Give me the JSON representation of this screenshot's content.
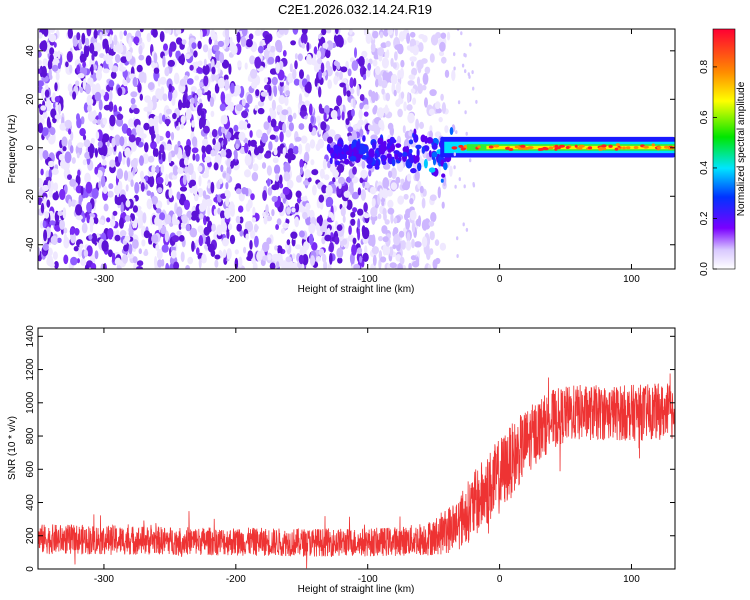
{
  "title": "C2E1.2026.032.14.24.R19",
  "colors": {
    "snr_trace": "#ee3333",
    "spectro_low": "#e4dcff",
    "spectro_mid": "#6a1fe0",
    "axis": "#000000"
  },
  "chart_data": [
    {
      "type": "heatmap",
      "name": "spectrogram",
      "xlabel": "Height of straight line (km)",
      "ylabel": "Frequency (Hz)",
      "xlim": [
        -350,
        133
      ],
      "ylim": [
        -50,
        49
      ],
      "xticks": [
        -300,
        -200,
        -100,
        0,
        100
      ],
      "xtick_labels": [
        "-300",
        "-200",
        "-100",
        "0",
        "100"
      ],
      "yticks": [
        -40,
        -20,
        0,
        20,
        40
      ],
      "ytick_labels": [
        "-40",
        "-20",
        "0",
        "20",
        "40"
      ],
      "grid": false,
      "description_regions": {
        "noise_region_x": [
          -350,
          -35
        ],
        "signal_band_hz": [
          -2,
          2
        ],
        "signal_start_x": -45
      },
      "colorbar": {
        "label": "Normalized spectral amplitude",
        "range": [
          0.0,
          0.95
        ],
        "ticks": [
          0.0,
          0.2,
          0.4,
          0.6,
          0.8
        ],
        "tick_labels": [
          "0.0",
          "0.2",
          "0.4",
          "0.6",
          "0.8"
        ],
        "colormap": [
          "#ffffff",
          "#7a00ff",
          "#0033ff",
          "#00e5ff",
          "#00e600",
          "#ffff00",
          "#ff8c00",
          "#ff0033"
        ]
      }
    },
    {
      "type": "line",
      "name": "snr",
      "xlabel": "Height of straight line (km)",
      "ylabel": "SNR (10 * v/v)",
      "xlim": [
        -350,
        133
      ],
      "ylim": [
        0,
        1450
      ],
      "xticks": [
        -300,
        -200,
        -100,
        0,
        100
      ],
      "xtick_labels": [
        "-300",
        "-200",
        "-100",
        "0",
        "100"
      ],
      "yticks": [
        0,
        200,
        400,
        600,
        800,
        1000,
        1200,
        1400
      ],
      "ytick_labels": [
        "0",
        "200",
        "400",
        "600",
        "800",
        "1000",
        "1200",
        "1400"
      ],
      "grid": false,
      "series": [
        {
          "name": "SNR",
          "envelope_x": [
            -350,
            -300,
            -250,
            -200,
            -150,
            -100,
            -70,
            -50,
            -40,
            -30,
            -20,
            -10,
            0,
            10,
            20,
            30,
            40,
            50,
            60,
            80,
            100,
            120,
            133
          ],
          "mean": [
            180,
            175,
            170,
            165,
            160,
            160,
            170,
            190,
            230,
            290,
            380,
            470,
            560,
            660,
            760,
            840,
            900,
            930,
            940,
            940,
            940,
            945,
            950
          ],
          "spread": [
            90,
            90,
            85,
            85,
            85,
            85,
            90,
            110,
            140,
            170,
            200,
            220,
            230,
            220,
            200,
            190,
            180,
            170,
            170,
            165,
            170,
            170,
            170
          ]
        }
      ]
    }
  ]
}
